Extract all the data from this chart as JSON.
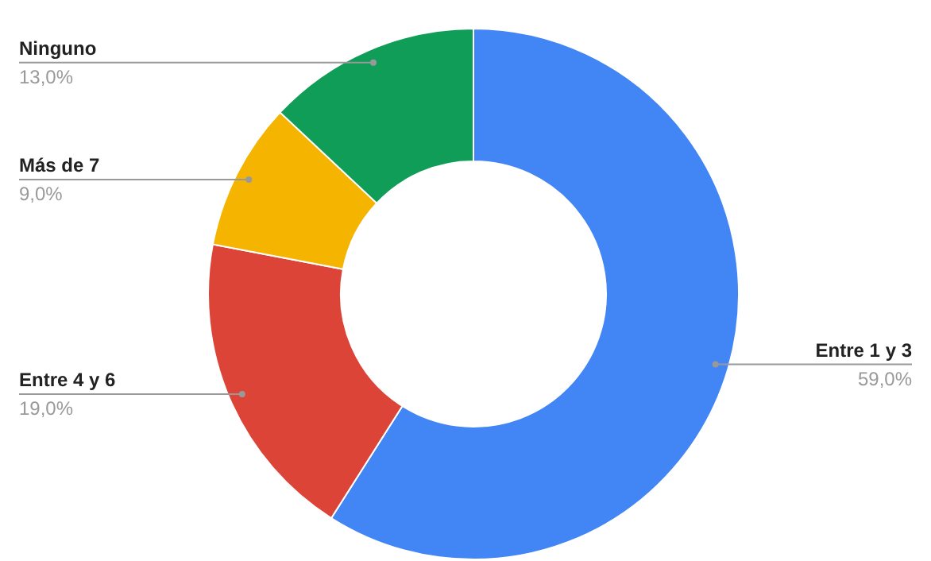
{
  "chart_data": {
    "type": "donut",
    "categories": [
      "Entre 1 y 3",
      "Entre 4 y 6",
      "Más de 7",
      "Ninguno"
    ],
    "values": [
      59,
      19,
      9,
      13
    ],
    "value_labels": [
      "59,0%",
      "19,0%",
      "9,0%",
      "13,0%"
    ],
    "colors": [
      "#4285f4",
      "#db4437",
      "#f4b400",
      "#0f9d58"
    ],
    "legend": false
  }
}
